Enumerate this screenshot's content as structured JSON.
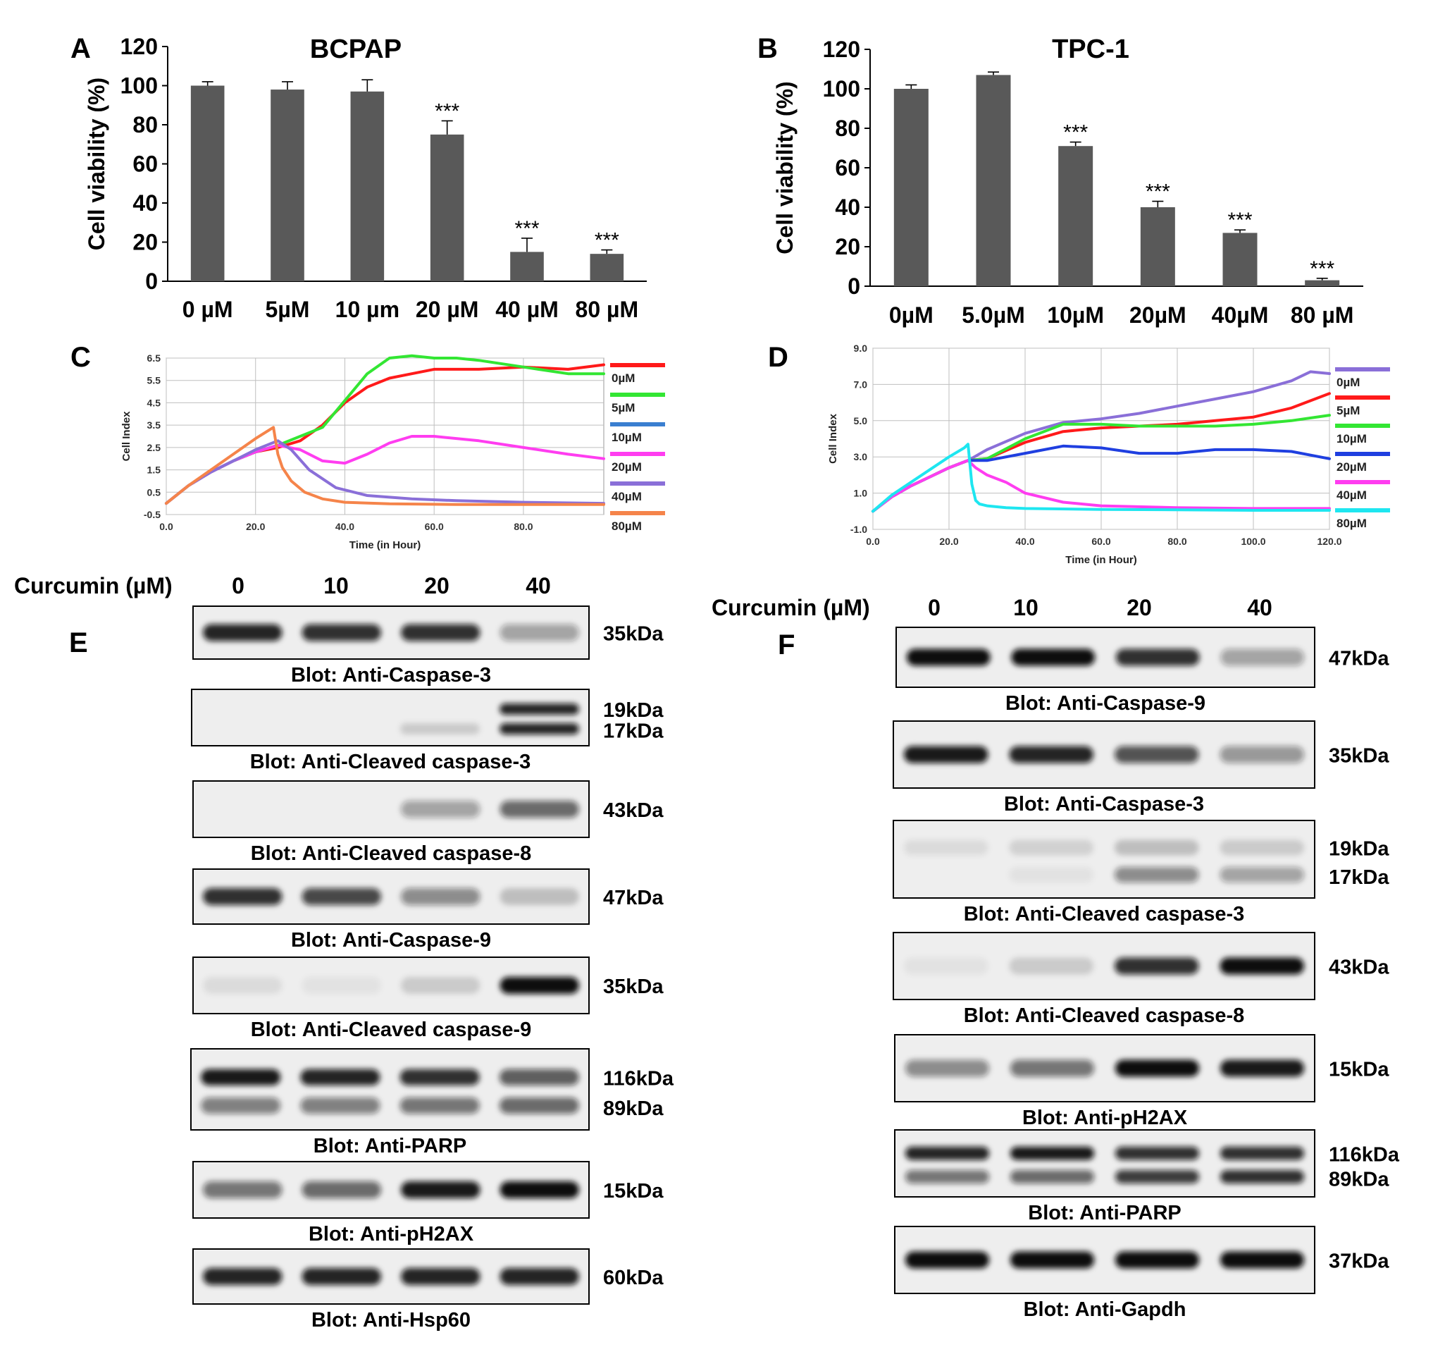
{
  "panels": {
    "A": "A",
    "B": "B",
    "C": "C",
    "D": "D",
    "E": "E",
    "F": "F"
  },
  "colors": {
    "bar": "#595959",
    "band": "#111111",
    "membrane": "#eeeeee",
    "grid": "#bfbfbf"
  },
  "chart_data": [
    {
      "id": "A",
      "type": "bar",
      "title": "BCPAP",
      "xlabel": "",
      "ylabel": "Cell viability (%)",
      "ylim": [
        0,
        120
      ],
      "yticks": [
        0,
        20,
        40,
        60,
        80,
        100,
        120
      ],
      "categories": [
        "0 µM",
        "5µM",
        "10 µm",
        "20 µM",
        "40 µM",
        "80 µM"
      ],
      "values": [
        100,
        98,
        97,
        75,
        15,
        14
      ],
      "errors": [
        2,
        4,
        6,
        7,
        7,
        2
      ],
      "annotations": [
        "",
        "",
        "",
        "***",
        "***",
        "***"
      ]
    },
    {
      "id": "B",
      "type": "bar",
      "title": "TPC-1",
      "xlabel": "",
      "ylabel": "Cell viability (%)",
      "ylim": [
        0,
        120
      ],
      "yticks": [
        0,
        20,
        40,
        60,
        80,
        100,
        120
      ],
      "categories": [
        "0µM",
        "5.0µM",
        "10µM",
        "20µM",
        "40µM",
        "80 µM"
      ],
      "values": [
        100,
        107,
        71,
        40,
        27,
        3
      ],
      "errors": [
        2,
        1.5,
        2,
        3,
        1.5,
        1
      ],
      "annotations": [
        "",
        "",
        "***",
        "***",
        "***",
        "***"
      ]
    },
    {
      "id": "C",
      "type": "line",
      "title": "",
      "xlabel": "Time (in Hour)",
      "ylabel": "Cell Index",
      "xlim": [
        0,
        98
      ],
      "ylim": [
        -0.5,
        6.5
      ],
      "xticks": [
        "0.0",
        "20.0",
        "40.0",
        "60.0",
        "80.0"
      ],
      "xtick_values": [
        0,
        20,
        40,
        60,
        80
      ],
      "yticks": [
        "-0.5",
        "0.5",
        "1.5",
        "2.5",
        "3.5",
        "4.5",
        "5.5",
        "6.5"
      ],
      "ytick_values": [
        -0.5,
        0.5,
        1.5,
        2.5,
        3.5,
        4.5,
        5.5,
        6.5
      ],
      "series": [
        {
          "name": "0µM",
          "color": "#ff1a1a",
          "x": [
            0,
            5,
            10,
            15,
            20,
            25,
            30,
            35,
            40,
            45,
            50,
            55,
            60,
            70,
            80,
            90,
            98
          ],
          "y": [
            0,
            0.8,
            1.4,
            1.9,
            2.3,
            2.5,
            2.8,
            3.5,
            4.5,
            5.2,
            5.6,
            5.8,
            6.0,
            6.0,
            6.1,
            6.0,
            6.2
          ]
        },
        {
          "name": "5µM",
          "color": "#33e633",
          "x": [
            0,
            5,
            10,
            15,
            20,
            25,
            30,
            35,
            40,
            45,
            50,
            55,
            60,
            65,
            70,
            80,
            90,
            98
          ],
          "y": [
            0,
            0.8,
            1.4,
            1.9,
            2.3,
            2.6,
            3.0,
            3.4,
            4.6,
            5.8,
            6.5,
            6.6,
            6.5,
            6.5,
            6.4,
            6.1,
            5.8,
            5.8
          ]
        },
        {
          "name": "10µM",
          "color": "#3a7fd0",
          "x": [
            0,
            5,
            10,
            15,
            20,
            25
          ],
          "y": [
            0,
            0.8,
            1.4,
            1.9,
            2.3,
            2.6
          ]
        },
        {
          "name": "20µM",
          "color": "#ff3df0",
          "x": [
            0,
            5,
            10,
            15,
            20,
            25,
            30,
            35,
            40,
            45,
            50,
            55,
            60,
            70,
            80,
            90,
            98
          ],
          "y": [
            0,
            0.8,
            1.4,
            1.9,
            2.3,
            2.6,
            2.4,
            1.9,
            1.8,
            2.2,
            2.7,
            3.0,
            3.0,
            2.8,
            2.5,
            2.2,
            2.0
          ]
        },
        {
          "name": "40µM",
          "color": "#8a6fd8",
          "x": [
            0,
            5,
            10,
            15,
            20,
            25,
            28,
            32,
            38,
            45,
            55,
            65,
            80,
            98
          ],
          "y": [
            0,
            0.8,
            1.4,
            1.9,
            2.4,
            2.8,
            2.4,
            1.5,
            0.7,
            0.35,
            0.2,
            0.12,
            0.05,
            0.0
          ]
        },
        {
          "name": "80µM",
          "color": "#f5844a",
          "x": [
            0,
            5,
            10,
            15,
            20,
            24,
            25,
            26,
            28,
            31,
            35,
            40,
            50,
            65,
            80,
            98
          ],
          "y": [
            0,
            0.8,
            1.5,
            2.2,
            2.9,
            3.4,
            2.2,
            1.6,
            1.0,
            0.5,
            0.2,
            0.05,
            -0.02,
            -0.05,
            -0.05,
            -0.05
          ]
        }
      ],
      "legend": [
        "0µM",
        "5µM",
        "10µM",
        "20µM",
        "40µM",
        "80µM"
      ]
    },
    {
      "id": "D",
      "type": "line",
      "title": "",
      "xlabel": "Time (in Hour)",
      "ylabel": "Cell Index",
      "xlim": [
        0,
        120
      ],
      "ylim": [
        -1,
        9
      ],
      "xticks": [
        "0.0",
        "20.0",
        "40.0",
        "60.0",
        "80.0",
        "100.0",
        "120.0"
      ],
      "xtick_values": [
        0,
        20,
        40,
        60,
        80,
        100,
        120
      ],
      "yticks": [
        "-1.0",
        "1.0",
        "3.0",
        "5.0",
        "7.0",
        "9.0"
      ],
      "ytick_values": [
        -1,
        1,
        3,
        5,
        7,
        9
      ],
      "series": [
        {
          "name": "0µM",
          "color": "#8a6fd8",
          "x": [
            0,
            5,
            10,
            15,
            20,
            25,
            30,
            40,
            50,
            60,
            70,
            80,
            90,
            100,
            110,
            115,
            120
          ],
          "y": [
            0,
            0.8,
            1.4,
            1.9,
            2.4,
            2.8,
            3.4,
            4.3,
            4.9,
            5.1,
            5.4,
            5.8,
            6.2,
            6.6,
            7.2,
            7.7,
            7.6
          ]
        },
        {
          "name": "5µM",
          "color": "#ff1a1a",
          "x": [
            0,
            5,
            10,
            15,
            20,
            25,
            30,
            40,
            50,
            60,
            70,
            80,
            90,
            100,
            110,
            120
          ],
          "y": [
            0,
            0.8,
            1.4,
            1.9,
            2.4,
            2.8,
            2.9,
            3.8,
            4.4,
            4.6,
            4.7,
            4.8,
            5.0,
            5.2,
            5.7,
            6.5
          ]
        },
        {
          "name": "10µM",
          "color": "#33e633",
          "x": [
            0,
            5,
            10,
            15,
            20,
            25,
            30,
            40,
            50,
            60,
            70,
            80,
            90,
            100,
            110,
            120
          ],
          "y": [
            0,
            0.8,
            1.4,
            1.9,
            2.4,
            2.8,
            2.9,
            4.0,
            4.8,
            4.8,
            4.7,
            4.7,
            4.7,
            4.8,
            5.0,
            5.3
          ]
        },
        {
          "name": "20µM",
          "color": "#1f3fe0",
          "x": [
            0,
            5,
            10,
            15,
            20,
            25,
            30,
            40,
            50,
            60,
            70,
            80,
            90,
            100,
            110,
            120
          ],
          "y": [
            0,
            0.8,
            1.4,
            1.9,
            2.4,
            2.8,
            2.8,
            3.2,
            3.6,
            3.5,
            3.2,
            3.2,
            3.4,
            3.4,
            3.3,
            2.9
          ]
        },
        {
          "name": "40µM",
          "color": "#ff3df0",
          "x": [
            0,
            5,
            10,
            15,
            20,
            25,
            27,
            30,
            35,
            40,
            50,
            60,
            80,
            100,
            120
          ],
          "y": [
            0,
            0.8,
            1.4,
            1.9,
            2.4,
            2.8,
            2.4,
            2.0,
            1.6,
            1.0,
            0.5,
            0.3,
            0.2,
            0.15,
            0.15
          ]
        },
        {
          "name": "80µM",
          "color": "#1ee6f0",
          "x": [
            0,
            5,
            10,
            15,
            20,
            24,
            25,
            26,
            27,
            28,
            30,
            35,
            40,
            60,
            80,
            100,
            120
          ],
          "y": [
            0,
            0.9,
            1.6,
            2.3,
            3.0,
            3.5,
            3.7,
            1.5,
            0.6,
            0.4,
            0.3,
            0.2,
            0.15,
            0.1,
            0.08,
            0.05,
            0.05
          ]
        }
      ],
      "legend": [
        "0µM",
        "5µM",
        "10µM",
        "20µM",
        "40µM",
        "80µM"
      ],
      "legend_colors": [
        "#8a6fd8",
        "#ff1a1a",
        "#33e633",
        "#1f3fe0",
        "#ff3df0",
        "#1ee6f0"
      ]
    }
  ],
  "blotsE": {
    "curcumin_label": "Curcumin (µM)",
    "lanes": [
      "0",
      "10",
      "20",
      "40"
    ],
    "blots": [
      {
        "caption": "Blot: Anti-Caspase-3",
        "kda": [
          "35kDa"
        ],
        "rows": [
          [
            0.9,
            0.85,
            0.85,
            0.35
          ]
        ]
      },
      {
        "caption": "Blot: Anti-Cleaved caspase-3",
        "kda": [
          "19kDa",
          "17kDa"
        ],
        "rows": [
          [
            0,
            0,
            0,
            0.9
          ],
          [
            0,
            0,
            0.15,
            0.9
          ]
        ]
      },
      {
        "caption": "Blot: Anti-Cleaved caspase-8",
        "kda": [
          "43kDa"
        ],
        "rows": [
          [
            0,
            0,
            0.35,
            0.6
          ]
        ]
      },
      {
        "caption": "Blot: Anti-Caspase-9",
        "kda": [
          "47kDa"
        ],
        "rows": [
          [
            0.85,
            0.75,
            0.45,
            0.2
          ]
        ]
      },
      {
        "caption": "Blot: Anti-Cleaved caspase-9",
        "kda": [
          "35kDa"
        ],
        "rows": [
          [
            0.08,
            0.05,
            0.15,
            1.0
          ]
        ]
      },
      {
        "caption": "Blot: Anti-PARP",
        "kda": [
          "116kDa",
          "89kDa"
        ],
        "rows": [
          [
            0.95,
            0.9,
            0.85,
            0.65
          ],
          [
            0.5,
            0.5,
            0.55,
            0.6
          ]
        ]
      },
      {
        "caption": "Blot: Anti-pH2AX",
        "kda": [
          "15kDa"
        ],
        "rows": [
          [
            0.55,
            0.6,
            0.95,
            1.0
          ]
        ]
      },
      {
        "caption": "Blot: Anti-Hsp60",
        "kda": [
          "60kDa"
        ],
        "rows": [
          [
            0.9,
            0.9,
            0.9,
            0.9
          ]
        ]
      }
    ]
  },
  "blotsF": {
    "curcumin_label": "Curcumin (µM)",
    "lanes": [
      "0",
      "10",
      "20",
      "40"
    ],
    "blots": [
      {
        "caption": "Blot: Anti-Caspase-9",
        "kda": [
          "47kDa"
        ],
        "rows": [
          [
            1.0,
            1.0,
            0.85,
            0.35
          ]
        ]
      },
      {
        "caption": "Blot: Anti-Caspase-3",
        "kda": [
          "35kDa"
        ],
        "rows": [
          [
            0.95,
            0.9,
            0.7,
            0.4
          ]
        ]
      },
      {
        "caption": "Blot: Anti-Cleaved caspase-3",
        "kda": [
          "19kDa",
          "17kDa"
        ],
        "rows": [
          [
            0.08,
            0.12,
            0.2,
            0.15
          ],
          [
            0,
            0.05,
            0.45,
            0.35
          ]
        ]
      },
      {
        "caption": "Blot: Anti-Cleaved caspase-8",
        "kda": [
          "43kDa"
        ],
        "rows": [
          [
            0.05,
            0.15,
            0.85,
            1.0
          ]
        ]
      },
      {
        "caption": "Blot: Anti-pH2AX",
        "kda": [
          "15kDa"
        ],
        "rows": [
          [
            0.45,
            0.55,
            1.0,
            0.95
          ]
        ]
      },
      {
        "caption": "Blot: Anti-PARP",
        "kda": [
          "116kDa",
          "89kDa"
        ],
        "rows": [
          [
            0.9,
            0.95,
            0.85,
            0.85
          ],
          [
            0.55,
            0.6,
            0.8,
            0.85
          ]
        ]
      },
      {
        "caption": "Blot: Anti-Gapdh",
        "kda": [
          "37kDa"
        ],
        "rows": [
          [
            1.0,
            1.0,
            1.0,
            1.0
          ]
        ]
      }
    ]
  }
}
